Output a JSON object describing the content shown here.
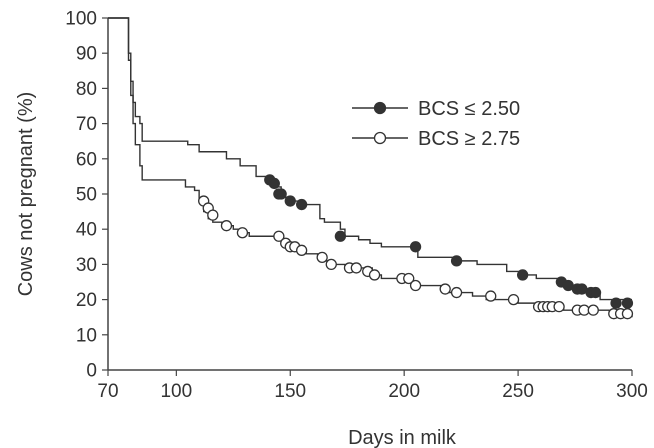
{
  "chart_data": {
    "type": "line",
    "title": "",
    "xlabel": "Days in milk",
    "ylabel": "Cows not pregnant (%)",
    "xlim": [
      70,
      300
    ],
    "ylim": [
      0,
      100
    ],
    "xticks": [
      70,
      100,
      150,
      200,
      250,
      300
    ],
    "yticks": [
      0,
      10,
      20,
      30,
      40,
      50,
      60,
      70,
      80,
      90,
      100
    ],
    "xtick_labels": [
      "70",
      "100",
      "150",
      "200",
      "250",
      "300"
    ],
    "ytick_labels": [
      "0",
      "10",
      "20",
      "30",
      "40",
      "50",
      "60",
      "70",
      "80",
      "90",
      "100"
    ],
    "grid": false,
    "legend_position": "right",
    "step": true,
    "series": [
      {
        "name": "BCS ≤ 2.50",
        "marker": "filled-circle",
        "color": "#333333",
        "line": [
          [
            70,
            100
          ],
          [
            78,
            100
          ],
          [
            79,
            90
          ],
          [
            80,
            82
          ],
          [
            81,
            76
          ],
          [
            82,
            72
          ],
          [
            84,
            70
          ],
          [
            85,
            65
          ],
          [
            104,
            65
          ],
          [
            105,
            64
          ],
          [
            110,
            62
          ],
          [
            120,
            62
          ],
          [
            122,
            60
          ],
          [
            126,
            60
          ],
          [
            128,
            58
          ],
          [
            133,
            58
          ],
          [
            135,
            55
          ],
          [
            139,
            55
          ],
          [
            142,
            54
          ],
          [
            144,
            52
          ],
          [
            146,
            50
          ],
          [
            148,
            49
          ],
          [
            150,
            48
          ],
          [
            154,
            48
          ],
          [
            156,
            47
          ],
          [
            158,
            47
          ],
          [
            163,
            43
          ],
          [
            165,
            42
          ],
          [
            170,
            42
          ],
          [
            172,
            40
          ],
          [
            174,
            38
          ],
          [
            178,
            38
          ],
          [
            180,
            37
          ],
          [
            185,
            36
          ],
          [
            190,
            35
          ],
          [
            205,
            35
          ],
          [
            206,
            32
          ],
          [
            219,
            32
          ],
          [
            222,
            31
          ],
          [
            232,
            30
          ],
          [
            245,
            28
          ],
          [
            252,
            27
          ],
          [
            258,
            26
          ],
          [
            268,
            25
          ],
          [
            272,
            24
          ],
          [
            278,
            23
          ],
          [
            282,
            22
          ],
          [
            284,
            22
          ],
          [
            286,
            20
          ],
          [
            300,
            20
          ]
        ],
        "markers": [
          [
            141,
            54
          ],
          [
            143,
            53
          ],
          [
            145,
            50
          ],
          [
            146,
            50
          ],
          [
            150,
            48
          ],
          [
            155,
            47
          ],
          [
            172,
            38
          ],
          [
            205,
            35
          ],
          [
            223,
            31
          ],
          [
            252,
            27
          ],
          [
            269,
            25
          ],
          [
            272,
            24
          ],
          [
            276,
            23
          ],
          [
            278,
            23
          ],
          [
            282,
            22
          ],
          [
            284,
            22
          ],
          [
            293,
            19
          ],
          [
            298,
            19
          ]
        ]
      },
      {
        "name": "BCS ≥ 2.75",
        "marker": "open-circle",
        "color": "#333333",
        "line": [
          [
            70,
            100
          ],
          [
            78,
            100
          ],
          [
            79,
            88
          ],
          [
            80,
            78
          ],
          [
            81,
            70
          ],
          [
            82,
            64
          ],
          [
            84,
            58
          ],
          [
            85,
            54
          ],
          [
            100,
            54
          ],
          [
            104,
            52
          ],
          [
            108,
            51
          ],
          [
            110,
            48
          ],
          [
            112,
            45
          ],
          [
            114,
            43
          ],
          [
            116,
            42
          ],
          [
            120,
            41
          ],
          [
            125,
            40
          ],
          [
            128,
            39
          ],
          [
            132,
            38
          ],
          [
            144,
            38
          ],
          [
            147,
            36
          ],
          [
            149,
            35
          ],
          [
            153,
            34
          ],
          [
            157,
            33
          ],
          [
            162,
            32
          ],
          [
            164,
            31
          ],
          [
            168,
            30
          ],
          [
            174,
            29
          ],
          [
            180,
            29
          ],
          [
            186,
            27
          ],
          [
            190,
            26
          ],
          [
            200,
            25
          ],
          [
            204,
            24
          ],
          [
            216,
            23
          ],
          [
            220,
            22
          ],
          [
            230,
            21
          ],
          [
            236,
            20
          ],
          [
            250,
            19
          ],
          [
            258,
            18
          ],
          [
            270,
            17
          ],
          [
            280,
            17
          ],
          [
            290,
            16
          ],
          [
            300,
            15
          ]
        ],
        "markers": [
          [
            112,
            48
          ],
          [
            114,
            46
          ],
          [
            116,
            44
          ],
          [
            122,
            41
          ],
          [
            129,
            39
          ],
          [
            145,
            38
          ],
          [
            148,
            36
          ],
          [
            150,
            35
          ],
          [
            152,
            35
          ],
          [
            155,
            34
          ],
          [
            164,
            32
          ],
          [
            168,
            30
          ],
          [
            176,
            29
          ],
          [
            179,
            29
          ],
          [
            184,
            28
          ],
          [
            187,
            27
          ],
          [
            199,
            26
          ],
          [
            202,
            26
          ],
          [
            205,
            24
          ],
          [
            218,
            23
          ],
          [
            223,
            22
          ],
          [
            238,
            21
          ],
          [
            248,
            20
          ],
          [
            259,
            18
          ],
          [
            261,
            18
          ],
          [
            263,
            18
          ],
          [
            265,
            18
          ],
          [
            268,
            18
          ],
          [
            276,
            17
          ],
          [
            279,
            17
          ],
          [
            283,
            17
          ],
          [
            292,
            16
          ],
          [
            295,
            16
          ],
          [
            298,
            16
          ]
        ]
      }
    ]
  }
}
